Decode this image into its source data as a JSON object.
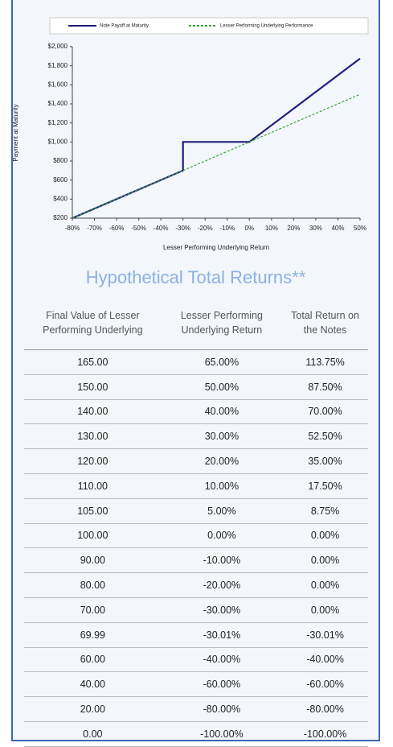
{
  "chart_data": {
    "type": "line",
    "xlabel": "Lesser Performing Underlying Return",
    "ylabel": "Payment at Maturity",
    "xlim": [
      -80,
      50
    ],
    "xticks": [
      {
        "value": -80,
        "label": "-80%"
      },
      {
        "value": -70,
        "label": "-70%"
      },
      {
        "value": -60,
        "label": "-60%"
      },
      {
        "value": -50,
        "label": "-50%"
      },
      {
        "value": -40,
        "label": "-40%"
      },
      {
        "value": -30,
        "label": "-30%"
      },
      {
        "value": -20,
        "label": "-20%"
      },
      {
        "value": -10,
        "label": "-10%"
      },
      {
        "value": 0,
        "label": "0%"
      },
      {
        "value": 10,
        "label": "10%"
      },
      {
        "value": 20,
        "label": "20%"
      },
      {
        "value": 30,
        "label": "30%"
      },
      {
        "value": 40,
        "label": "40%"
      },
      {
        "value": 50,
        "label": "50%"
      }
    ],
    "ylim": [
      200,
      2000
    ],
    "yticks": [
      {
        "value": 200,
        "label": "$200"
      },
      {
        "value": 400,
        "label": "$400"
      },
      {
        "value": 600,
        "label": "$600"
      },
      {
        "value": 800,
        "label": "$800"
      },
      {
        "value": 1000,
        "label": "$1,000"
      },
      {
        "value": 1200,
        "label": "$1,200"
      },
      {
        "value": 1400,
        "label": "$1,400"
      },
      {
        "value": 1600,
        "label": "$1,600"
      },
      {
        "value": 1800,
        "label": "$1,800"
      },
      {
        "value": 2000,
        "label": "$2,000"
      }
    ],
    "legend": "top",
    "series": [
      {
        "name": "Note Payoff at Maturity",
        "color": "#1f1f7a",
        "dash": "solid",
        "x": [
          -80,
          -30,
          -30,
          0,
          50
        ],
        "values": [
          200,
          700,
          1000,
          1000,
          1875
        ]
      },
      {
        "name": "Lesser Performing Underlying Performance",
        "color": "#3aa63a",
        "dash": "dashed",
        "x": [
          -80,
          50
        ],
        "values": [
          200,
          1500
        ]
      }
    ]
  },
  "table": {
    "title": "Hypothetical Total Returns**",
    "header": [
      "Final Value of Lesser Performing Underlying",
      "Lesser Performing Underlying Return",
      "Total Return on the Notes"
    ],
    "rows": [
      [
        "165.00",
        "65.00%",
        "113.75%"
      ],
      [
        "150.00",
        "50.00%",
        "87.50%"
      ],
      [
        "140.00",
        "40.00%",
        "70.00%"
      ],
      [
        "130.00",
        "30.00%",
        "52.50%"
      ],
      [
        "120.00",
        "20.00%",
        "35.00%"
      ],
      [
        "110.00",
        "10.00%",
        "17.50%"
      ],
      [
        "105.00",
        "5.00%",
        "8.75%"
      ],
      [
        "100.00",
        "0.00%",
        "0.00%"
      ],
      [
        "90.00",
        "-10.00%",
        "0.00%"
      ],
      [
        "80.00",
        "-20.00%",
        "0.00%"
      ],
      [
        "70.00",
        "-30.00%",
        "0.00%"
      ],
      [
        "69.99",
        "-30.01%",
        "-30.01%"
      ],
      [
        "60.00",
        "-40.00%",
        "-40.00%"
      ],
      [
        "40.00",
        "-60.00%",
        "-60.00%"
      ],
      [
        "20.00",
        "-80.00%",
        "-80.00%"
      ],
      [
        "0.00",
        "-100.00%",
        "-100.00%"
      ]
    ]
  }
}
